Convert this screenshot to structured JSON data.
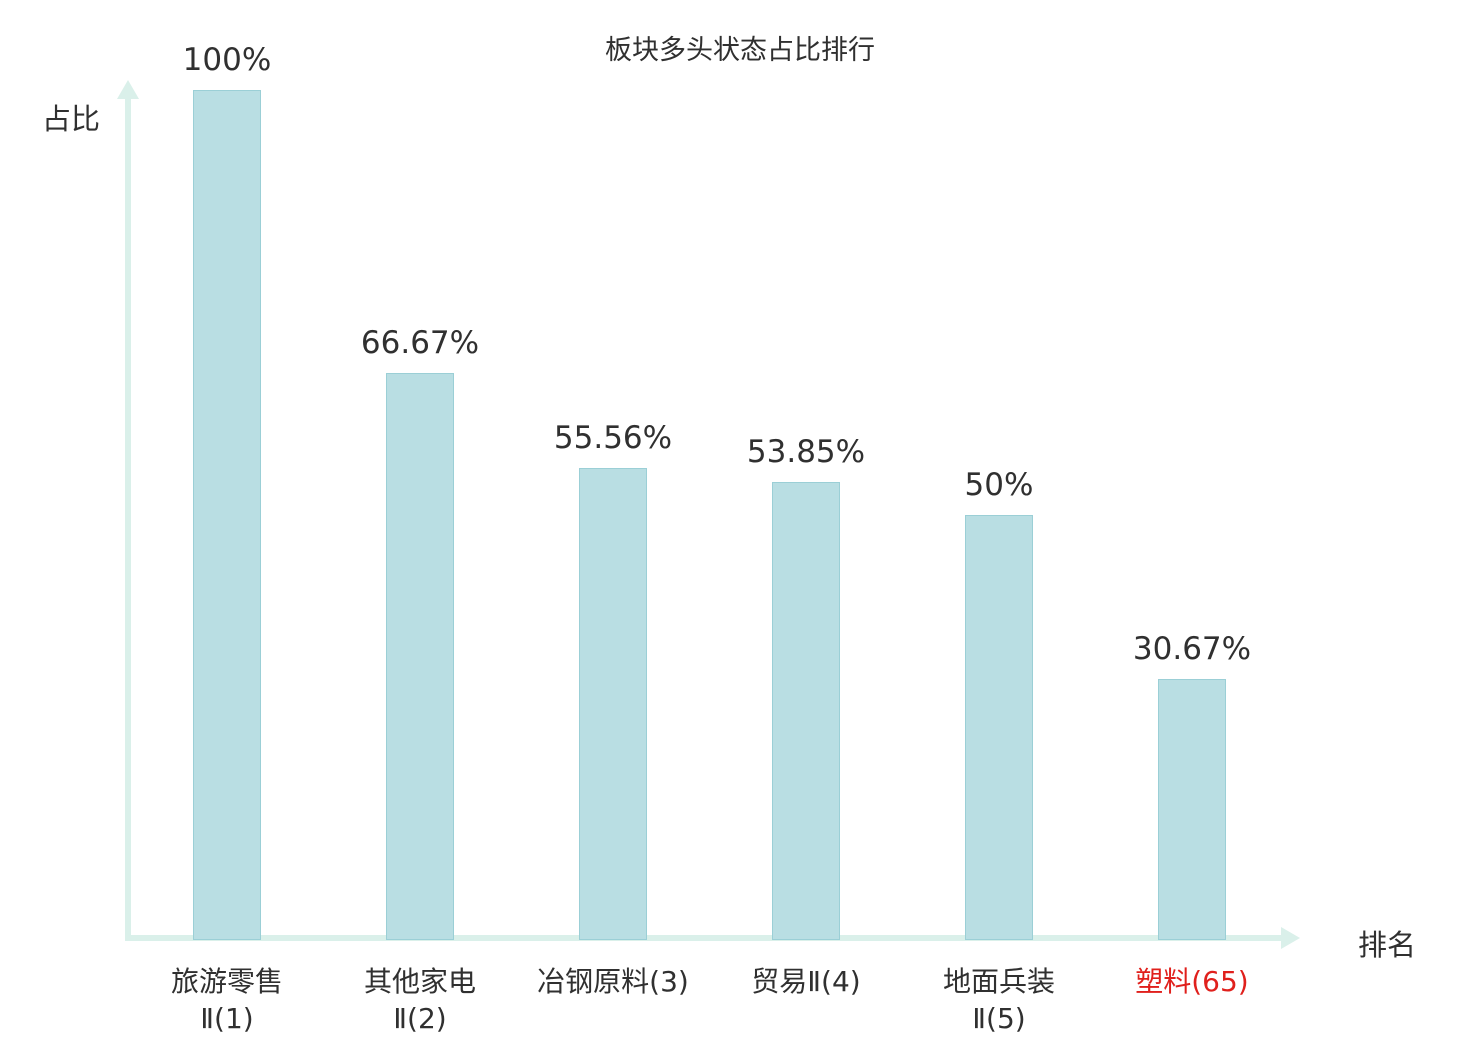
{
  "colors": {
    "bar_fill": "#b9dee3",
    "bar_border": "#9bcfd6",
    "axis": "#daf0ea",
    "text": "#303030",
    "highlight": "#e0201c"
  },
  "chart_data": {
    "type": "bar",
    "title": "板块多头状态占比排行",
    "ylabel": "占比",
    "xlabel": "排名",
    "ylim": [
      0,
      100
    ],
    "grid": false,
    "legend": "none",
    "categories": [
      "旅游零售Ⅱ(1)",
      "其他家电Ⅱ(2)",
      "冶钢原料(3)",
      "贸易Ⅱ(4)",
      "地面兵装Ⅱ(5)",
      "塑料(65)"
    ],
    "category_lines": [
      [
        "旅游零售",
        "Ⅱ(1)"
      ],
      [
        "其他家电",
        "Ⅱ(2)"
      ],
      [
        "冶钢原料(3)"
      ],
      [
        "贸易Ⅱ(4)"
      ],
      [
        "地面兵装",
        "Ⅱ(5)"
      ],
      [
        "塑料(65)"
      ]
    ],
    "values": [
      100,
      66.67,
      55.56,
      53.85,
      50,
      30.67
    ],
    "value_labels": [
      "100%",
      "66.67%",
      "55.56%",
      "53.85%",
      "50%",
      "30.67%"
    ],
    "highlight_index": 5
  }
}
